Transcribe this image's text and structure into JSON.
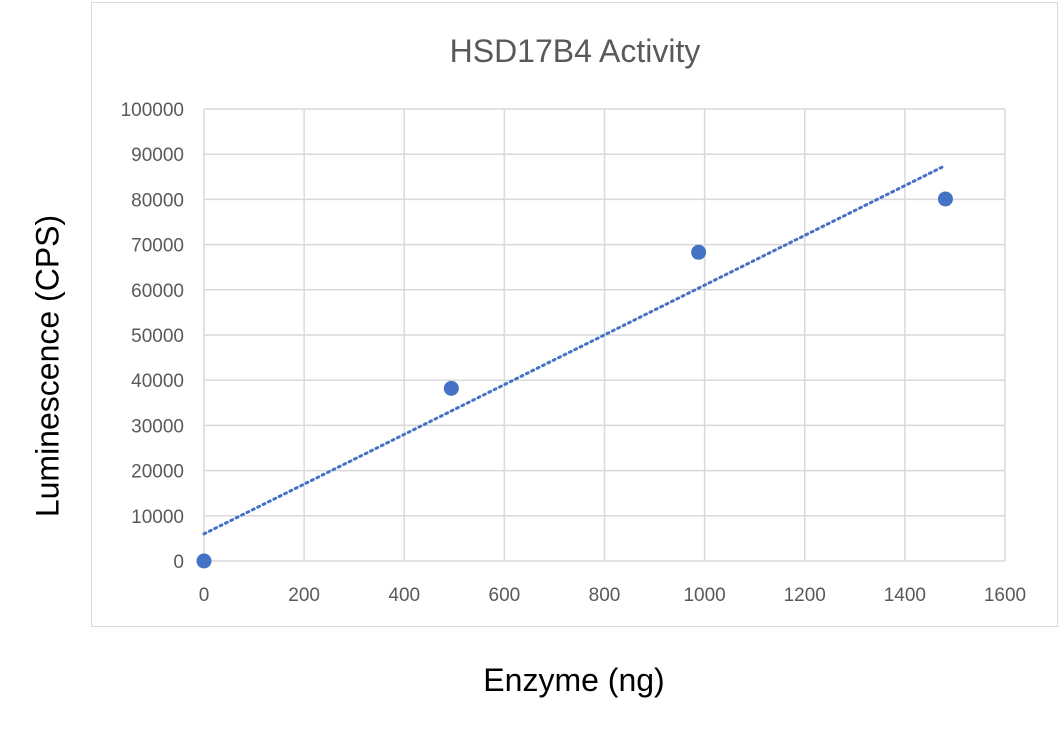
{
  "chart_data": {
    "type": "scatter",
    "title": "HSD17B4 Activity",
    "xlabel": "Enzyme (ng)",
    "ylabel": "Luminescence (CPS)",
    "xlim": [
      0,
      1600
    ],
    "ylim": [
      0,
      100000
    ],
    "x_ticks": [
      0,
      200,
      400,
      600,
      800,
      1000,
      1200,
      1400,
      1600
    ],
    "y_ticks": [
      0,
      10000,
      20000,
      30000,
      40000,
      50000,
      60000,
      70000,
      80000,
      90000,
      100000
    ],
    "grid": true,
    "legend": "none",
    "series": [
      {
        "x": [
          0,
          494,
          988,
          1481
        ],
        "y": [
          0,
          38200,
          68300,
          80100
        ],
        "color": "#4472c4"
      }
    ],
    "trendline": {
      "type": "linear",
      "x": [
        0,
        1481
      ],
      "y": [
        6000,
        87500
      ],
      "style": "dotted",
      "color": "#4472c4"
    }
  },
  "colors": {
    "grid": "#d9d9d9",
    "frame": "#d9d9d9",
    "tick_text": "#595959",
    "title_text": "#595959"
  }
}
